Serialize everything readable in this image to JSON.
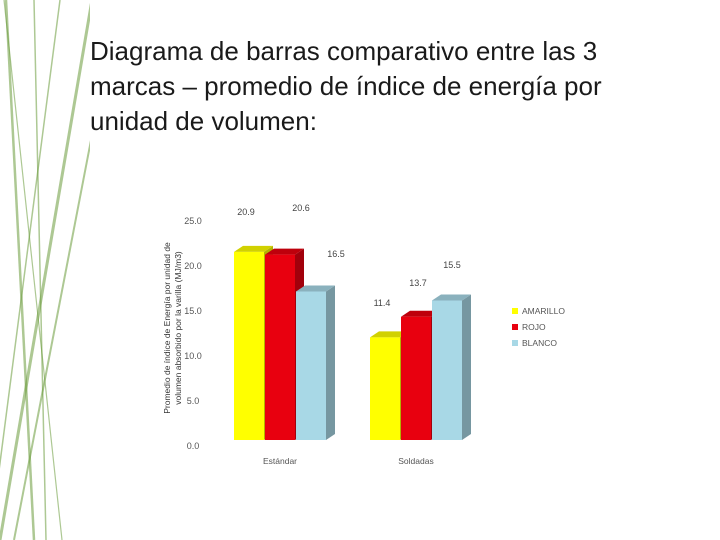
{
  "slide": {
    "title_lines": [
      "Diagrama de barras comparativo entre las 3",
      "marcas – promedio de índice de energía por",
      "unidad de volumen:"
    ]
  },
  "colors": {
    "stripes": "#6a9a3a",
    "amarillo": "#ffff00",
    "rojo": "#e8000f",
    "blanco": "#a8d8e6"
  },
  "chart_data": {
    "type": "bar",
    "categories": [
      "Estándar",
      "Soldadas"
    ],
    "series": [
      {
        "name": "AMARILLO",
        "values": [
          20.9,
          11.4
        ],
        "labels": [
          "20.9",
          "11.4"
        ]
      },
      {
        "name": "ROJO",
        "values": [
          20.6,
          13.7
        ],
        "labels": [
          "20.6",
          "13.7"
        ]
      },
      {
        "name": "BLANCO",
        "values": [
          16.5,
          15.5
        ],
        "labels": [
          "16.5",
          "15.5"
        ]
      }
    ],
    "y_ticks": [
      {
        "value": 0,
        "label": "0.0"
      },
      {
        "value": 5,
        "label": "5.0"
      },
      {
        "value": 10,
        "label": "10.0"
      },
      {
        "value": 15,
        "label": "15.0"
      },
      {
        "value": 20,
        "label": "20.0"
      },
      {
        "value": 25,
        "label": "25.0"
      }
    ],
    "ylabel_lines": [
      "Promedio de índice de Energía por unidad de",
      "volumen absorbido por la varilla (MJ/m3)"
    ],
    "ylim": [
      0,
      25
    ],
    "grid": false,
    "legend": "right"
  }
}
